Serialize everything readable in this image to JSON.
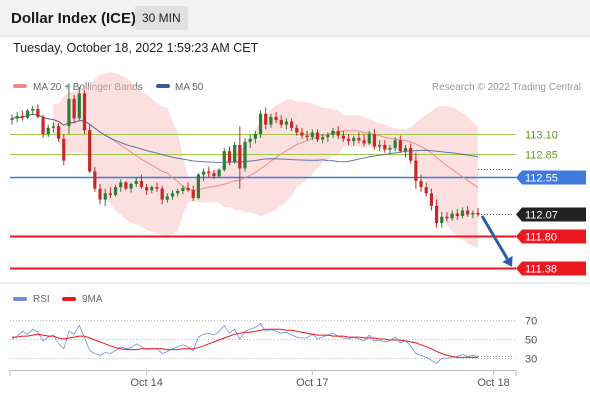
{
  "header": {
    "title": "Dollar Index (ICE)",
    "timeframe": "30 MIN",
    "timestamp": "Tuesday, October 18, 2022 1:59:23 AM CET"
  },
  "source": "Research © 2022 Trading Central",
  "colors": {
    "bull": "#2e7d32",
    "bear": "#c62828",
    "bollinger": "#f9c6c6",
    "ma20": "#f08a8a",
    "ma50": "#3b5998",
    "resistance_green": "#9bc94d",
    "pivot_blue": "#3f7ae0",
    "support_red": "#e8181e",
    "last_price_bg": "#222222",
    "arrow": "#2b5ea8",
    "rsi": "#6b8fd6",
    "rsi_ma": "#e8181e"
  },
  "chart_data": [
    {
      "type": "candlestick",
      "instrument": "Dollar Index (ICE)",
      "interval": "30 MIN",
      "ylim": [
        111.23,
        113.6
      ],
      "legend": [
        {
          "name": "MA 20 + Bollinger Bands",
          "color": "#f08a8a"
        },
        {
          "name": "MA 50",
          "color": "#3b5998"
        }
      ],
      "price_levels": [
        {
          "value": 113.1,
          "label": "113.10",
          "kind": "resistance",
          "color": "#9bc94d"
        },
        {
          "value": 112.85,
          "label": "112.85",
          "kind": "resistance",
          "color": "#9bc94d"
        },
        {
          "value": 112.55,
          "label": "112.55",
          "kind": "pivot",
          "color": "#3f7ae0"
        },
        {
          "value": 112.07,
          "label": "112.07",
          "kind": "last",
          "color": "#222222"
        },
        {
          "value": 111.8,
          "label": "111.80",
          "kind": "support",
          "color": "#e8181e"
        },
        {
          "value": 111.38,
          "label": "111.38",
          "kind": "support",
          "color": "#e8181e"
        }
      ],
      "forecast_arrow": {
        "from": 112.05,
        "to": 111.4,
        "direction": "down"
      },
      "x_ticks": [
        {
          "index": 26,
          "label": "Oct 14"
        },
        {
          "index": 58,
          "label": "Oct 17"
        },
        {
          "index": 93,
          "label": "Oct 18"
        }
      ],
      "ohlc": [
        [
          113.28,
          113.35,
          113.22,
          113.3
        ],
        [
          113.3,
          113.38,
          113.25,
          113.33
        ],
        [
          113.33,
          113.4,
          113.27,
          113.31
        ],
        [
          113.31,
          113.42,
          113.29,
          113.4
        ],
        [
          113.4,
          113.46,
          113.34,
          113.42
        ],
        [
          113.42,
          113.48,
          113.3,
          113.32
        ],
        [
          113.32,
          113.35,
          113.05,
          113.1
        ],
        [
          113.1,
          113.22,
          113.06,
          113.18
        ],
        [
          113.18,
          113.25,
          113.12,
          113.2
        ],
        [
          113.2,
          113.24,
          113.0,
          113.04
        ],
        [
          113.04,
          113.1,
          112.7,
          112.76
        ],
        [
          113.2,
          113.75,
          113.1,
          113.55
        ],
        [
          113.55,
          113.6,
          113.25,
          113.3
        ],
        [
          113.3,
          113.7,
          113.28,
          113.62
        ],
        [
          113.62,
          113.66,
          113.1,
          113.15
        ],
        [
          113.15,
          113.22,
          112.6,
          112.62
        ],
        [
          112.62,
          112.68,
          112.36,
          112.4
        ],
        [
          112.4,
          112.46,
          112.2,
          112.26
        ],
        [
          112.26,
          112.4,
          112.18,
          112.34
        ],
        [
          112.34,
          112.42,
          112.28,
          112.32
        ],
        [
          112.32,
          112.45,
          112.3,
          112.42
        ],
        [
          112.42,
          112.52,
          112.36,
          112.48
        ],
        [
          112.48,
          112.5,
          112.38,
          112.4
        ],
        [
          112.4,
          112.48,
          112.35,
          112.46
        ],
        [
          112.46,
          112.55,
          112.42,
          112.5
        ],
        [
          112.5,
          112.58,
          112.4,
          112.42
        ],
        [
          112.42,
          112.46,
          112.32,
          112.38
        ],
        [
          112.38,
          112.44,
          112.34,
          112.42
        ],
        [
          112.42,
          112.48,
          112.36,
          112.4
        ],
        [
          112.4,
          112.44,
          112.2,
          112.26
        ],
        [
          112.26,
          112.34,
          112.22,
          112.3
        ],
        [
          112.3,
          112.38,
          112.26,
          112.34
        ],
        [
          112.34,
          112.4,
          112.3,
          112.37
        ],
        [
          112.37,
          112.44,
          112.33,
          112.41
        ],
        [
          112.41,
          112.48,
          112.36,
          112.38
        ],
        [
          112.38,
          112.44,
          112.24,
          112.28
        ],
        [
          112.28,
          112.6,
          112.26,
          112.58
        ],
        [
          112.58,
          112.66,
          112.5,
          112.62
        ],
        [
          112.62,
          112.68,
          112.55,
          112.6
        ],
        [
          112.6,
          112.64,
          112.52,
          112.56
        ],
        [
          112.56,
          112.66,
          112.54,
          112.64
        ],
        [
          112.64,
          112.92,
          112.62,
          112.88
        ],
        [
          112.88,
          112.94,
          112.7,
          112.74
        ],
        [
          112.74,
          113.0,
          112.72,
          112.96
        ],
        [
          112.96,
          113.2,
          112.4,
          112.66
        ],
        [
          112.66,
          113.05,
          112.62,
          113.0
        ],
        [
          113.0,
          113.1,
          112.92,
          113.04
        ],
        [
          113.04,
          113.14,
          112.98,
          113.1
        ],
        [
          113.1,
          113.4,
          113.05,
          113.36
        ],
        [
          113.36,
          113.44,
          113.16,
          113.22
        ],
        [
          113.22,
          113.36,
          113.18,
          113.32
        ],
        [
          113.32,
          113.38,
          113.24,
          113.28
        ],
        [
          113.28,
          113.34,
          113.18,
          113.22
        ],
        [
          113.22,
          113.3,
          113.16,
          113.26
        ],
        [
          113.26,
          113.3,
          113.14,
          113.18
        ],
        [
          113.18,
          113.22,
          113.08,
          113.12
        ],
        [
          113.12,
          113.18,
          113.04,
          113.08
        ],
        [
          113.08,
          113.14,
          113.02,
          113.06
        ],
        [
          113.06,
          113.16,
          113.02,
          113.12
        ],
        [
          113.12,
          113.16,
          113.0,
          113.03
        ],
        [
          113.03,
          113.1,
          112.98,
          113.06
        ],
        [
          113.06,
          113.12,
          113.0,
          113.09
        ],
        [
          113.09,
          113.18,
          113.05,
          113.14
        ],
        [
          113.14,
          113.2,
          113.04,
          113.08
        ],
        [
          113.08,
          113.14,
          113.0,
          113.04
        ],
        [
          113.04,
          113.1,
          112.96,
          113.01
        ],
        [
          113.01,
          113.08,
          112.95,
          113.05
        ],
        [
          113.05,
          113.12,
          112.98,
          113.02
        ],
        [
          113.02,
          113.1,
          112.94,
          112.98
        ],
        [
          112.98,
          113.14,
          112.96,
          113.1
        ],
        [
          113.1,
          113.16,
          112.9,
          112.94
        ],
        [
          112.94,
          113.02,
          112.88,
          112.96
        ],
        [
          112.96,
          113.02,
          112.86,
          112.9
        ],
        [
          112.9,
          112.96,
          112.84,
          112.92
        ],
        [
          112.92,
          113.06,
          112.88,
          113.02
        ],
        [
          113.02,
          113.08,
          112.86,
          112.88
        ],
        [
          112.88,
          112.96,
          112.8,
          112.92
        ],
        [
          112.92,
          112.98,
          112.72,
          112.76
        ],
        [
          112.76,
          112.86,
          112.4,
          112.5
        ],
        [
          112.5,
          112.58,
          112.36,
          112.42
        ],
        [
          112.42,
          112.48,
          112.3,
          112.34
        ],
        [
          112.34,
          112.4,
          112.12,
          112.18
        ],
        [
          112.18,
          112.26,
          111.9,
          111.96
        ],
        [
          111.96,
          112.1,
          111.9,
          112.04
        ],
        [
          112.04,
          112.1,
          111.98,
          112.02
        ],
        [
          112.02,
          112.12,
          111.99,
          112.08
        ],
        [
          112.08,
          112.14,
          112.0,
          112.05
        ],
        [
          112.05,
          112.16,
          112.02,
          112.12
        ],
        [
          112.12,
          112.18,
          112.04,
          112.07
        ],
        [
          112.07,
          112.12,
          112.02,
          112.09
        ],
        [
          112.09,
          112.15,
          112.04,
          112.07
        ]
      ]
    },
    {
      "type": "line",
      "legend": [
        {
          "name": "RSI",
          "color": "#6b8fd6"
        },
        {
          "name": "9MA",
          "color": "#e8181e"
        }
      ],
      "ylim": [
        20,
        80
      ],
      "y_ticks": [
        70,
        50,
        30
      ],
      "series": [
        {
          "name": "RSI",
          "values": [
            50,
            53,
            58,
            55,
            60,
            57,
            48,
            52,
            54,
            45,
            40,
            58,
            55,
            64,
            52,
            38,
            35,
            33,
            36,
            35,
            38,
            42,
            40,
            41,
            45,
            42,
            39,
            40,
            40,
            35,
            37,
            40,
            42,
            44,
            42,
            38,
            52,
            55,
            56,
            54,
            58,
            64,
            56,
            60,
            50,
            58,
            60,
            62,
            66,
            58,
            60,
            58,
            56,
            57,
            54,
            52,
            51,
            51,
            55,
            50,
            52,
            54,
            56,
            53,
            51,
            50,
            52,
            50,
            48,
            54,
            48,
            49,
            47,
            48,
            52,
            46,
            48,
            43,
            35,
            33,
            31,
            28,
            25,
            30,
            30,
            31,
            32,
            34,
            32,
            33,
            32
          ]
        },
        {
          "name": "9MA",
          "values": [
            52,
            52,
            53,
            53,
            54,
            55,
            54,
            53,
            53,
            51,
            50,
            51,
            52,
            53,
            53,
            51,
            49,
            47,
            45,
            43,
            41,
            40,
            39,
            39,
            39,
            40,
            40,
            40,
            40,
            40,
            39,
            39,
            39,
            40,
            40,
            40,
            41,
            43,
            45,
            47,
            49,
            51,
            53,
            55,
            56,
            57,
            57,
            58,
            59,
            60,
            60,
            60,
            60,
            59,
            59,
            58,
            57,
            56,
            55,
            54,
            54,
            54,
            53,
            53,
            53,
            52,
            52,
            52,
            51,
            51,
            51,
            50,
            50,
            49,
            49,
            49,
            48,
            47,
            46,
            44,
            42,
            40,
            37,
            35,
            33,
            32,
            31,
            31,
            31,
            31,
            31
          ]
        }
      ]
    }
  ]
}
